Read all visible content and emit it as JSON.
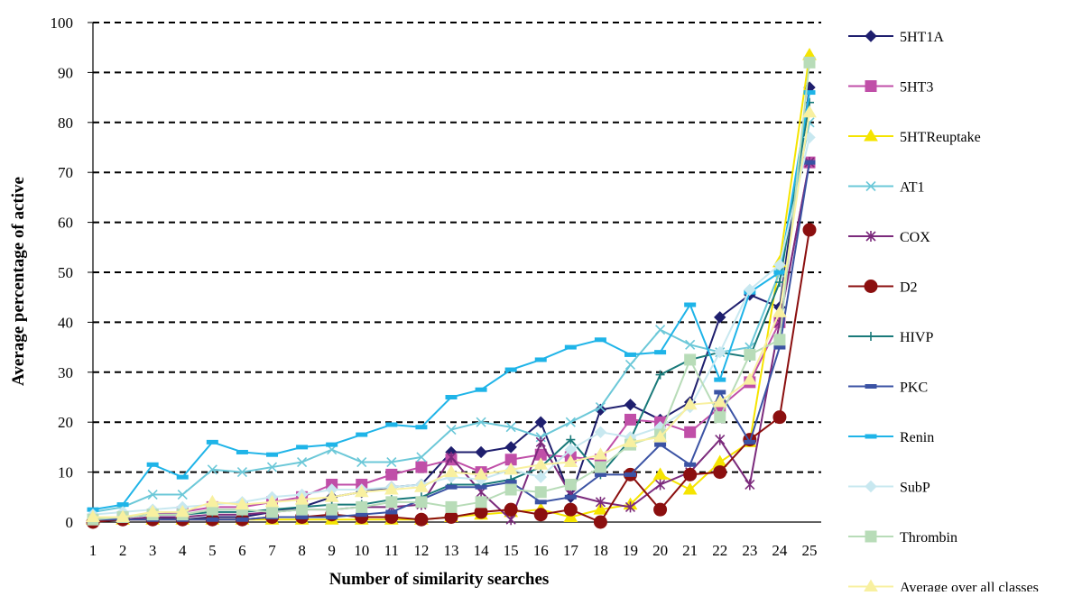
{
  "chart_data": {
    "type": "line",
    "xlabel": "Number of similarity searches",
    "ylabel": "Average percentage of active",
    "x": [
      1,
      2,
      3,
      4,
      5,
      6,
      7,
      8,
      9,
      10,
      11,
      12,
      13,
      14,
      15,
      16,
      17,
      18,
      19,
      20,
      21,
      22,
      23,
      24,
      25
    ],
    "ylim": [
      0,
      100
    ],
    "yticks": [
      0,
      10,
      20,
      30,
      40,
      50,
      60,
      70,
      80,
      90,
      100
    ],
    "grid": "horizontal dashed",
    "legend_position": "right",
    "series": [
      {
        "name": "5HT1A",
        "color": "#1f1f6e",
        "marker": "diamond",
        "values": [
          0.5,
          0.5,
          1.0,
          0.5,
          1.0,
          1.0,
          2.0,
          3.0,
          5.0,
          6.0,
          7.0,
          7.5,
          14.0,
          14.0,
          15.0,
          20.0,
          5.0,
          22.5,
          23.5,
          20.5,
          24.0,
          41.0,
          45.5,
          43.0,
          87.0
        ]
      },
      {
        "name": "5HT3",
        "color": "#c04fa8",
        "marker": "square",
        "values": [
          0.5,
          1.0,
          1.5,
          2.0,
          3.0,
          3.0,
          4.0,
          5.0,
          7.5,
          7.5,
          9.5,
          11.0,
          12.5,
          10.0,
          12.5,
          13.5,
          13.0,
          12.5,
          20.5,
          20.0,
          18.0,
          23.0,
          28.0,
          40.0,
          72.0
        ]
      },
      {
        "name": "5HTReuptake",
        "color": "#f5e400",
        "marker": "triangle",
        "values": [
          0.5,
          0.5,
          0.5,
          0.5,
          0.5,
          0.5,
          0.5,
          0.5,
          0.5,
          0.5,
          0.5,
          0.5,
          1.0,
          1.5,
          2.0,
          2.5,
          1.0,
          2.5,
          3.5,
          9.5,
          6.5,
          12.0,
          16.0,
          52.0,
          93.5
        ]
      },
      {
        "name": "AT1",
        "color": "#6cc8d8",
        "marker": "x",
        "values": [
          2.0,
          3.0,
          5.5,
          5.5,
          10.5,
          10.0,
          11.0,
          12.0,
          14.5,
          12.0,
          12.0,
          13.0,
          18.5,
          20.0,
          19.0,
          17.0,
          20.0,
          23.0,
          31.5,
          38.5,
          35.5,
          34.0,
          35.0,
          50.0,
          80.0
        ]
      },
      {
        "name": "COX",
        "color": "#7b2a7c",
        "marker": "star",
        "values": [
          0.5,
          0.5,
          1.0,
          1.0,
          1.5,
          1.5,
          2.0,
          2.5,
          2.5,
          3.0,
          3.0,
          3.5,
          13.0,
          6.0,
          0.5,
          16.0,
          5.5,
          4.0,
          3.0,
          7.5,
          10.0,
          16.5,
          7.5,
          40.0,
          72.0
        ]
      },
      {
        "name": "D2",
        "color": "#8b0f0f",
        "marker": "circle",
        "values": [
          0.0,
          0.5,
          0.5,
          0.5,
          0.5,
          0.5,
          1.0,
          1.0,
          1.5,
          1.0,
          1.0,
          0.5,
          1.0,
          2.0,
          2.5,
          1.5,
          2.5,
          0.0,
          9.5,
          2.5,
          9.5,
          10.0,
          16.5,
          21.0,
          58.5
        ]
      },
      {
        "name": "HIVP",
        "color": "#1a7a7a",
        "marker": "plus",
        "values": [
          1.0,
          1.0,
          1.5,
          1.5,
          2.0,
          2.0,
          2.5,
          3.0,
          3.5,
          3.5,
          4.5,
          5.0,
          7.5,
          7.5,
          8.5,
          11.0,
          16.5,
          9.5,
          16.5,
          29.5,
          32.5,
          34.0,
          33.0,
          48.0,
          84.0
        ]
      },
      {
        "name": "PKC",
        "color": "#3b53a4",
        "marker": "dash",
        "values": [
          0.5,
          0.5,
          0.5,
          0.5,
          0.5,
          0.5,
          1.0,
          1.0,
          1.0,
          1.5,
          2.0,
          4.5,
          7.0,
          7.0,
          8.0,
          4.0,
          5.0,
          9.5,
          9.5,
          15.5,
          11.5,
          26.0,
          16.0,
          35.0,
          72.0
        ]
      },
      {
        "name": "Renin",
        "color": "#1fb4e8",
        "marker": "dash",
        "values": [
          2.5,
          3.5,
          11.5,
          9.0,
          16.0,
          14.0,
          13.5,
          15.0,
          15.5,
          17.5,
          19.5,
          19.0,
          25.0,
          26.5,
          30.5,
          32.5,
          35.0,
          36.5,
          33.5,
          34.0,
          43.5,
          28.5,
          46.0,
          50.0,
          86.0
        ]
      },
      {
        "name": "SubP",
        "color": "#c8e8f0",
        "marker": "diamond",
        "values": [
          1.5,
          2.0,
          2.5,
          3.0,
          3.5,
          4.0,
          5.0,
          5.5,
          6.5,
          6.5,
          7.0,
          7.5,
          9.0,
          8.5,
          10.5,
          9.0,
          14.5,
          18.0,
          17.0,
          19.0,
          23.0,
          34.0,
          46.5,
          51.5,
          77.0
        ]
      },
      {
        "name": "Thrombin",
        "color": "#b8dcb8",
        "marker": "square",
        "values": [
          0.5,
          1.0,
          1.5,
          1.5,
          2.5,
          2.5,
          2.0,
          2.5,
          2.5,
          3.0,
          4.0,
          4.0,
          3.0,
          4.0,
          6.5,
          6.0,
          7.5,
          11.0,
          15.5,
          17.5,
          32.5,
          21.0,
          33.5,
          36.5,
          92.0
        ]
      },
      {
        "name": "Average over all classes",
        "color": "#f8f0a0",
        "marker": "triangle",
        "values": [
          1.0,
          1.0,
          2.0,
          2.0,
          4.0,
          3.5,
          4.0,
          4.5,
          5.0,
          6.0,
          6.5,
          7.0,
          10.0,
          9.5,
          10.5,
          11.5,
          12.0,
          13.5,
          16.0,
          17.0,
          23.5,
          24.0,
          28.5,
          42.0,
          82.0
        ]
      }
    ]
  }
}
